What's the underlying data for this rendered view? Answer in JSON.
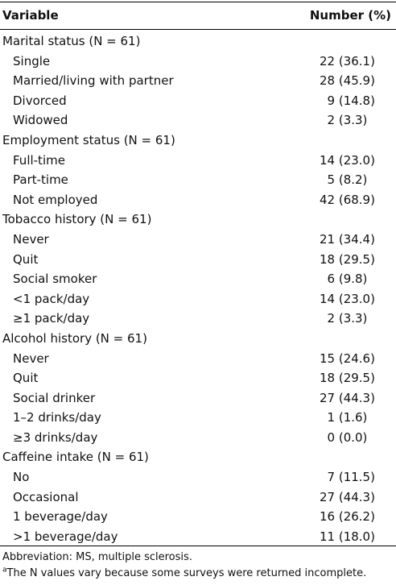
{
  "table": {
    "header": {
      "variable": "Variable",
      "number": "Number (%)"
    },
    "rows": [
      {
        "type": "group",
        "label": "Marital status (N = 61)",
        "value": ""
      },
      {
        "type": "item",
        "label": "Single",
        "value": "22 (36.1)"
      },
      {
        "type": "item",
        "label": "Married/living with partner",
        "value": "28 (45.9)"
      },
      {
        "type": "item",
        "label": "Divorced",
        "value": "  9 (14.8)"
      },
      {
        "type": "item",
        "label": "Widowed",
        "value": "  2 (3.3)"
      },
      {
        "type": "group",
        "label": "Employment status (N = 61)",
        "value": ""
      },
      {
        "type": "item",
        "label": "Full-time",
        "value": "14 (23.0)"
      },
      {
        "type": "item",
        "label": "Part-time",
        "value": "  5 (8.2)"
      },
      {
        "type": "item",
        "label": "Not employed",
        "value": "42 (68.9)"
      },
      {
        "type": "group",
        "label": "Tobacco history (N = 61)",
        "value": ""
      },
      {
        "type": "item",
        "label": "Never",
        "value": "21 (34.4)"
      },
      {
        "type": "item",
        "label": "Quit",
        "value": "18 (29.5)"
      },
      {
        "type": "item",
        "label": "Social smoker",
        "value": "  6 (9.8)"
      },
      {
        "type": "item",
        "label": "<1 pack/day",
        "value": "14 (23.0)"
      },
      {
        "type": "item",
        "label": "≥1 pack/day",
        "value": "  2 (3.3)"
      },
      {
        "type": "group",
        "label": "Alcohol history (N = 61)",
        "value": ""
      },
      {
        "type": "item",
        "label": "Never",
        "value": "15 (24.6)"
      },
      {
        "type": "item",
        "label": "Quit",
        "value": "18 (29.5)"
      },
      {
        "type": "item",
        "label": "Social drinker",
        "value": "27 (44.3)"
      },
      {
        "type": "item",
        "label": "1–2 drinks/day",
        "value": "  1 (1.6)"
      },
      {
        "type": "item",
        "label": "≥3 drinks/day",
        "value": "  0 (0.0)"
      },
      {
        "type": "group",
        "label": "Caffeine intake (N = 61)",
        "value": ""
      },
      {
        "type": "item",
        "label": "No",
        "value": "  7 (11.5)"
      },
      {
        "type": "item",
        "label": "Occasional",
        "value": "27 (44.3)"
      },
      {
        "type": "item",
        "label": "1 beverage/day",
        "value": "16 (26.2)"
      },
      {
        "type": "item",
        "label": ">1 beverage/day",
        "value": "11 (18.0)"
      }
    ]
  },
  "footnotes": {
    "abbreviation": "Abbreviation: MS, multiple sclerosis.",
    "note_marker": "a",
    "note_text": "The N values vary because some surveys were returned incomplete."
  }
}
